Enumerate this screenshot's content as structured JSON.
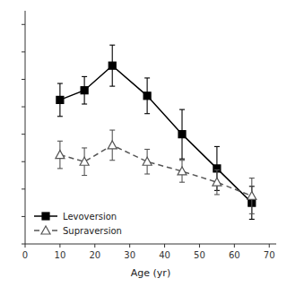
{
  "chart_data": {
    "type": "line",
    "x_label": "Age (yr)",
    "x": [
      10,
      17,
      25,
      35,
      45,
      55,
      65
    ],
    "series": [
      {
        "name": "Levoversion",
        "color": "#000000",
        "marker": "square",
        "line_style": "solid",
        "values": [
          28.5,
          29.2,
          31.0,
          28.8,
          26.0,
          23.5,
          21.0
        ],
        "yerr": [
          1.2,
          1.0,
          1.5,
          1.3,
          1.8,
          1.6,
          1.2
        ]
      },
      {
        "name": "Supraversion",
        "color": "#555555",
        "marker": "open-triangle",
        "line_style": "dashed",
        "values": [
          24.5,
          24.0,
          25.2,
          24.0,
          23.3,
          22.5,
          21.5
        ],
        "yerr": [
          1.0,
          1.0,
          1.1,
          0.9,
          0.8,
          0.9,
          1.3
        ]
      }
    ],
    "xlim": [
      0,
      72
    ],
    "ylim": [
      18,
      35
    ],
    "xticks": [
      0,
      10,
      20,
      30,
      40,
      50,
      60,
      70
    ],
    "yticks": [
      18,
      20,
      22,
      24,
      26,
      28,
      30,
      32,
      34
    ],
    "tick_labels": "x",
    "grid": false,
    "legend": "lower left"
  }
}
